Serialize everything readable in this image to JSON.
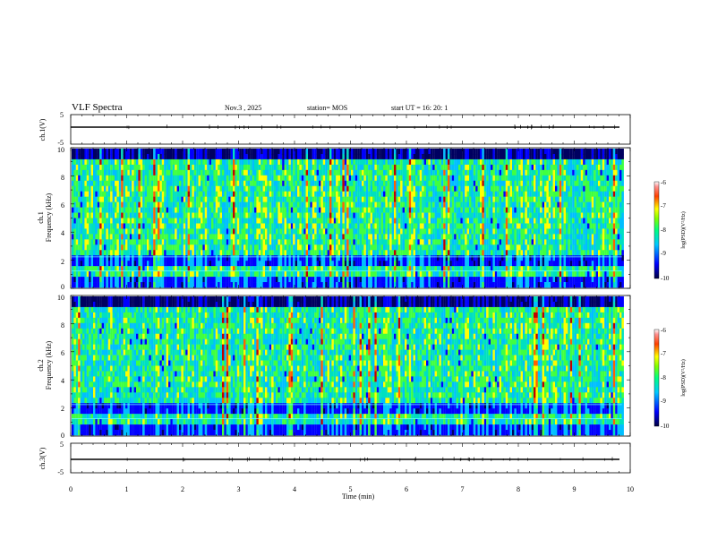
{
  "header": {
    "title": "VLF Spectra",
    "date": "Nov.3  , 2025",
    "station": "station= MOS",
    "start": "start  UT  =   16: 20: 1"
  },
  "colors": {
    "spectrogram_ramp": [
      "#000060",
      "#0000ff",
      "#00bfff",
      "#00e0c0",
      "#40ff40",
      "#ffff00",
      "#ff6000",
      "#c00000"
    ]
  },
  "chart_data": [
    {
      "type": "line",
      "ylabel": "ch.1(V)",
      "ylim": [
        -5,
        5
      ],
      "yticks": [
        "5",
        "-5"
      ],
      "xlim": [
        0,
        10
      ],
      "baseline_value": -0.8
    },
    {
      "type": "heatmap",
      "ylabel_lines": [
        "ch.1",
        "Frequency (kHz)"
      ],
      "ylim": [
        0,
        10
      ],
      "yticks": [
        "0",
        "2",
        "4",
        "6",
        "8",
        "10"
      ],
      "xlim": [
        0,
        9.85
      ],
      "colorbar": {
        "label": "log(PSD)(V²/Hz)",
        "ticks": [
          "-6",
          "-7",
          "-8",
          "-9",
          "-10"
        ],
        "range": [
          -10,
          -6
        ]
      }
    },
    {
      "type": "heatmap",
      "ylabel_lines": [
        "ch.2",
        "Frequency (kHz)"
      ],
      "ylim": [
        0,
        10
      ],
      "yticks": [
        "0",
        "2",
        "4",
        "6",
        "8",
        "10"
      ],
      "xlim": [
        0,
        9.85
      ],
      "colorbar": {
        "label": "log(PSD)(V²/Hz)",
        "ticks": [
          "-6",
          "-7",
          "-8",
          "-9",
          "-10"
        ],
        "range": [
          -10,
          -6
        ]
      }
    },
    {
      "type": "line",
      "ylabel": "ch.3(V)",
      "ylim": [
        -5,
        5
      ],
      "yticks": [
        "5",
        "-5"
      ],
      "xlim": [
        0,
        10
      ],
      "baseline_value": -1.2
    }
  ],
  "xaxis": {
    "label": "Time  (min)",
    "ticks": [
      "0",
      "1",
      "2",
      "3",
      "4",
      "5",
      "6",
      "7",
      "8",
      "9",
      "10"
    ],
    "range": [
      0,
      10
    ]
  }
}
